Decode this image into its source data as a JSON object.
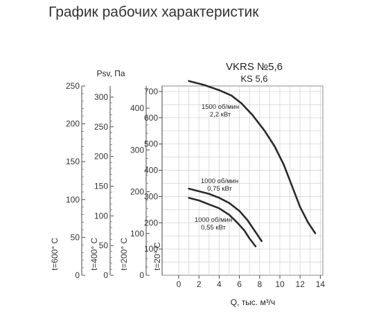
{
  "page_title": "График рабочих характеристик",
  "chart_data": {
    "type": "line",
    "title": "VKRS №5,6",
    "subtitle": "KS 5,6",
    "xlabel": "Q, тыс. м³/ч",
    "ylabel": "Psv, Па",
    "xlim": [
      0,
      14
    ],
    "ylim": [
      0,
      750
    ],
    "x_ticks": [
      "0",
      "2",
      "4",
      "6",
      "8",
      "10",
      "12",
      "14"
    ],
    "y_ticks": [
      "100",
      "200",
      "300",
      "400",
      "500",
      "600",
      "700"
    ],
    "grid": true,
    "series": [
      {
        "name": "1500 об/мин 2,2 кВт",
        "label_lines": [
          "1500 об/мин",
          "2,2 кВт"
        ],
        "x": [
          1.0,
          2.5,
          4.0,
          5.2,
          6.2,
          7.3,
          8.5,
          9.5,
          10.4,
          11.2,
          12.0,
          12.8,
          13.5
        ],
        "y": [
          740,
          725,
          705,
          685,
          655,
          610,
          550,
          490,
          420,
          340,
          260,
          200,
          160
        ]
      },
      {
        "name": "1000 об/мин 0,75 кВт",
        "label_lines": [
          "1000 об/мин",
          "0,75 кВт"
        ],
        "x": [
          1.0,
          2.0,
          3.0,
          4.0,
          5.0,
          6.0,
          6.8,
          7.5,
          8.2
        ],
        "y": [
          330,
          320,
          310,
          295,
          275,
          245,
          210,
          170,
          130
        ]
      },
      {
        "name": "1000 об/мин 0,55 кВт",
        "label_lines": [
          "1000 об/мин",
          "0,55 кВт"
        ],
        "x": [
          1.0,
          2.0,
          3.0,
          4.0,
          5.0,
          5.8,
          6.5,
          7.0,
          7.6
        ],
        "y": [
          295,
          285,
          270,
          255,
          230,
          200,
          170,
          140,
          110
        ]
      }
    ],
    "temperature_scales": [
      {
        "label": "t=600° C",
        "ticks": [
          "0",
          "50",
          "100",
          "150",
          "200",
          "250"
        ],
        "max": 250
      },
      {
        "label": "t=400° C",
        "ticks": [
          "0",
          "50",
          "100",
          "150",
          "200",
          "250",
          "300"
        ],
        "max": 300
      },
      {
        "label": "t=200° C",
        "ticks": [
          "0",
          "100",
          "200",
          "300",
          "400"
        ],
        "max": 400
      },
      {
        "label": "t=20° C",
        "ticks": [
          "0"
        ],
        "max": 0
      }
    ]
  }
}
